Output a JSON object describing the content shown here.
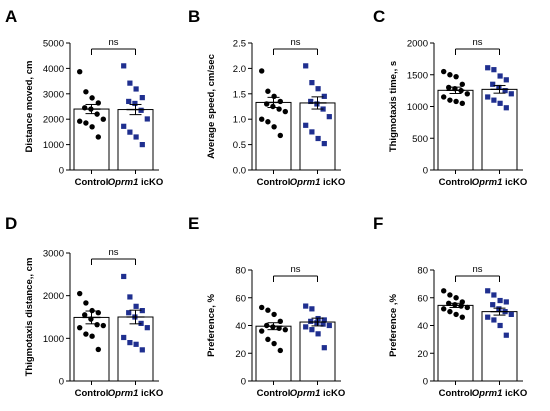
{
  "colors": {
    "control": "#000000",
    "icko": "#1f2f8f",
    "axis": "#000000"
  },
  "chart_data": [
    {
      "type": "bar",
      "panel": "A",
      "categories": [
        "Control",
        "Oprm1 icKO"
      ],
      "ylabel": "Distance moved, cm",
      "ylim": [
        0,
        5000
      ],
      "yticks": [
        "0",
        "1000",
        "2000",
        "3000",
        "4000",
        "5000"
      ],
      "values": [
        2400,
        2380
      ],
      "sem": [
        180,
        200
      ],
      "significance": "ns",
      "points": {
        "Control": [
          3870,
          3080,
          2840,
          2640,
          2450,
          2400,
          2200,
          2000,
          1920,
          1850,
          1700,
          1300
        ],
        "Oprm1 icKO": [
          4100,
          3420,
          3190,
          2850,
          2700,
          2620,
          2350,
          2010,
          1720,
          1490,
          1300,
          1000
        ]
      }
    },
    {
      "type": "bar",
      "panel": "B",
      "categories": [
        "Control",
        "Oprm1 icKO"
      ],
      "ylabel": "Average speed, cm/sec",
      "ylim": [
        0,
        2.5
      ],
      "yticks": [
        "0.0",
        "0.5",
        "1.0",
        "1.5",
        "2.0",
        "2.5"
      ],
      "values": [
        1.33,
        1.32
      ],
      "sem": [
        0.1,
        0.12
      ],
      "significance": "ns",
      "points": {
        "Control": [
          1.95,
          1.55,
          1.45,
          1.35,
          1.3,
          1.25,
          1.2,
          1.15,
          1.0,
          0.95,
          0.85,
          0.68
        ],
        "Oprm1 icKO": [
          2.05,
          1.72,
          1.6,
          1.45,
          1.35,
          1.3,
          1.2,
          1.05,
          0.88,
          0.75,
          0.62,
          0.52
        ]
      }
    },
    {
      "type": "bar",
      "panel": "C",
      "categories": [
        "Control",
        "Oprm1 icKO"
      ],
      "ylabel": "Thigmotaxis time,, s",
      "ylim": [
        0,
        2000
      ],
      "yticks": [
        "0",
        "500",
        "1000",
        "1500",
        "2000"
      ],
      "values": [
        1255,
        1270
      ],
      "sem": [
        50,
        60
      ],
      "significance": "ns",
      "points": {
        "Control": [
          1550,
          1500,
          1470,
          1350,
          1300,
          1280,
          1250,
          1200,
          1150,
          1100,
          1080,
          1050
        ],
        "Oprm1 icKO": [
          1610,
          1580,
          1480,
          1420,
          1350,
          1300,
          1250,
          1200,
          1150,
          1100,
          1050,
          980
        ]
      }
    },
    {
      "type": "bar",
      "panel": "D",
      "categories": [
        "Control",
        "Oprm1 icKO"
      ],
      "ylabel": "Thigmotaxis distance,, cm",
      "ylim": [
        0,
        3000
      ],
      "yticks": [
        "0",
        "1000",
        "2000",
        "3000"
      ],
      "values": [
        1490,
        1500
      ],
      "sem": [
        150,
        160
      ],
      "significance": "ns",
      "points": {
        "Control": [
          2050,
          1830,
          1650,
          1600,
          1550,
          1450,
          1320,
          1300,
          1250,
          1100,
          1050,
          740
        ],
        "Oprm1 icKO": [
          2450,
          1970,
          1750,
          1650,
          1600,
          1500,
          1350,
          1250,
          1020,
          900,
          860,
          730
        ]
      }
    },
    {
      "type": "bar",
      "panel": "E",
      "categories": [
        "Control",
        "Oprm1 icKO"
      ],
      "ylabel": "Preference, %",
      "ylim": [
        0,
        80
      ],
      "yticks": [
        "0",
        "20",
        "40",
        "60",
        "80"
      ],
      "values": [
        39.5,
        42.5
      ],
      "sem": [
        2.5,
        2.8
      ],
      "significance": "ns",
      "points": {
        "Control": [
          53,
          51,
          48,
          43,
          40,
          39,
          38,
          37,
          36,
          30,
          27,
          22
        ],
        "Oprm1 icKO": [
          54,
          52,
          45,
          44,
          43,
          42,
          41,
          40,
          39,
          37,
          34,
          24
        ]
      }
    },
    {
      "type": "bar",
      "panel": "F",
      "categories": [
        "Control",
        "Oprm1 icKO"
      ],
      "ylabel": "Preference ,%",
      "ylim": [
        0,
        80
      ],
      "yticks": [
        "0",
        "20",
        "40",
        "60",
        "80"
      ],
      "values": [
        54.5,
        50
      ],
      "sem": [
        1.5,
        2.5
      ],
      "significance": "ns",
      "points": {
        "Control": [
          65,
          62,
          60,
          57,
          56,
          55,
          54,
          53,
          52,
          50,
          48,
          46
        ],
        "Oprm1 icKO": [
          65,
          62,
          58,
          57,
          55,
          52,
          50,
          48,
          46,
          44,
          40,
          33
        ]
      }
    }
  ]
}
